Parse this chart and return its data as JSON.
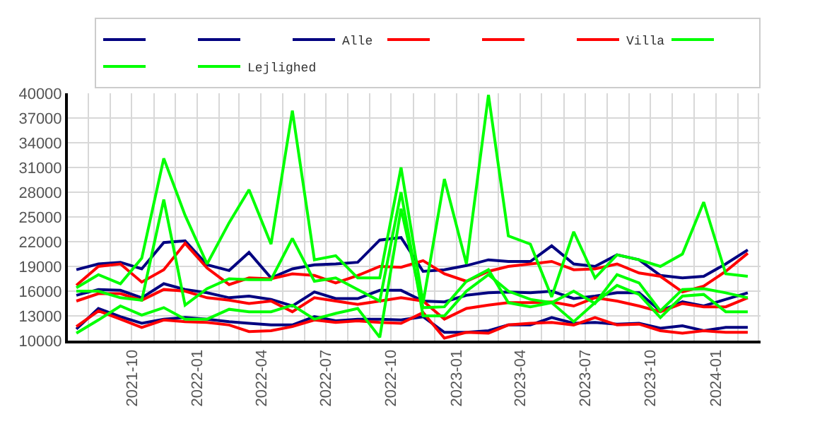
{
  "chart_data": {
    "type": "line",
    "x": [
      "2021-07-15",
      "2021-08-15",
      "2021-09-15",
      "2021-10-15",
      "2021-11-15",
      "2021-12-15",
      "2022-01-15",
      "2022-02-15",
      "2022-03-15",
      "2022-04-15",
      "2022-05-15",
      "2022-06-15",
      "2022-07-15",
      "2022-08-15",
      "2022-09-15",
      "2022-10-15",
      "2022-11-15",
      "2022-12-15",
      "2023-01-15",
      "2023-02-15",
      "2023-03-15",
      "2023-04-15",
      "2023-05-15",
      "2023-06-15",
      "2023-07-15",
      "2023-08-15",
      "2023-09-15",
      "2023-10-15",
      "2023-11-15",
      "2023-12-15",
      "2024-01-15",
      "2024-02-15"
    ],
    "series": [
      {
        "color": "#000080",
        "values": [
          18600,
          19300,
          19500,
          18700,
          21900,
          22100,
          19200,
          18500,
          20700,
          17600,
          18700,
          19200,
          19300,
          19500,
          22200,
          22500,
          18400,
          18600,
          19100,
          19800,
          19600,
          19600,
          21500,
          19300,
          19000,
          20400,
          19800,
          17900,
          17600,
          17800,
          19300,
          21000
        ]
      },
      {
        "color": "#000080",
        "values": [
          15500,
          16200,
          16100,
          15200,
          16900,
          16200,
          15800,
          15200,
          15400,
          15000,
          14200,
          15900,
          15100,
          15100,
          16100,
          16100,
          14800,
          14700,
          15500,
          15800,
          15900,
          15800,
          16000,
          15100,
          15400,
          15800,
          15800,
          13600,
          14700,
          14200,
          15000,
          15800
        ]
      },
      {
        "name": "Alle",
        "color": "#000080",
        "values": [
          11400,
          13900,
          12900,
          12100,
          12600,
          12800,
          12600,
          12300,
          12100,
          11900,
          11900,
          12900,
          12400,
          12600,
          12600,
          12500,
          12900,
          11000,
          11000,
          11200,
          11900,
          11900,
          12800,
          12100,
          12200,
          12000,
          12100,
          11500,
          11800,
          11200,
          11600,
          11600
        ]
      },
      {
        "color": "#ff0000",
        "values": [
          16700,
          19000,
          19300,
          17100,
          18600,
          21800,
          18800,
          16800,
          17600,
          17500,
          18100,
          17900,
          17000,
          17900,
          19000,
          18900,
          19700,
          18100,
          17200,
          18400,
          19000,
          19300,
          19600,
          18600,
          18700,
          19300,
          18200,
          17800,
          15900,
          16600,
          18400,
          20600
        ]
      },
      {
        "color": "#ff0000",
        "values": [
          14800,
          15700,
          15700,
          14900,
          16200,
          16000,
          15200,
          14900,
          14500,
          14800,
          13500,
          15200,
          14800,
          14400,
          14800,
          15200,
          14800,
          12600,
          13900,
          14300,
          14600,
          14600,
          14700,
          14200,
          15200,
          14800,
          14200,
          13500,
          14500,
          14100,
          14100,
          15200
        ]
      },
      {
        "name": "Villa",
        "color": "#ff0000",
        "values": [
          11700,
          13600,
          12600,
          11600,
          12500,
          12300,
          12200,
          11900,
          11100,
          11200,
          11700,
          12500,
          12200,
          12400,
          12200,
          12100,
          13400,
          10300,
          11000,
          10900,
          11900,
          12100,
          12200,
          11900,
          12800,
          11900,
          12000,
          11200,
          10900,
          11200,
          11000,
          11000
        ]
      },
      {
        "color": "#00ff00",
        "values": [
          16400,
          18000,
          16900,
          20000,
          32100,
          25200,
          19300,
          24300,
          28300,
          21700,
          37900,
          19800,
          20300,
          17600,
          17600,
          31000,
          14600,
          29600,
          19300,
          39800,
          22700,
          21700,
          15300,
          23200,
          17600,
          20400,
          19800,
          19000,
          20500,
          26800,
          18100,
          17800
        ]
      },
      {
        "color": "#00ff00",
        "values": [
          16000,
          16000,
          15200,
          14900,
          27100,
          14300,
          16300,
          17500,
          17400,
          17400,
          22400,
          17200,
          17600,
          16200,
          14800,
          28000,
          13000,
          13000,
          16000,
          18000,
          16000,
          15000,
          14600,
          16000,
          14500,
          18000,
          17000,
          13600,
          16200,
          16300,
          15800,
          15200
        ]
      },
      {
        "name": "Lejlighed",
        "color": "#00ff00",
        "values": [
          10900,
          12500,
          14200,
          13100,
          14000,
          12600,
          12600,
          13800,
          13500,
          13500,
          14300,
          12600,
          13300,
          13900,
          10400,
          26000,
          14000,
          14100,
          17200,
          18600,
          14600,
          14100,
          14600,
          12300,
          14600,
          16700,
          15600,
          12800,
          15400,
          15600,
          13500,
          13500
        ]
      }
    ],
    "xlim": [
      "2021-07-03",
      "2024-03-04"
    ],
    "xticks": [
      {
        "value": "2021-08-01",
        "label": null
      },
      {
        "value": "2021-09-01",
        "label": null
      },
      {
        "value": "2021-10-01",
        "label": "2021-10"
      },
      {
        "value": "2021-11-01",
        "label": null
      },
      {
        "value": "2021-12-01",
        "label": null
      },
      {
        "value": "2022-01-01",
        "label": "2022-01"
      },
      {
        "value": "2022-02-01",
        "label": null
      },
      {
        "value": "2022-03-01",
        "label": null
      },
      {
        "value": "2022-04-01",
        "label": "2022-04"
      },
      {
        "value": "2022-05-01",
        "label": null
      },
      {
        "value": "2022-06-01",
        "label": null
      },
      {
        "value": "2022-07-01",
        "label": "2022-07"
      },
      {
        "value": "2022-08-01",
        "label": null
      },
      {
        "value": "2022-09-01",
        "label": null
      },
      {
        "value": "2022-10-01",
        "label": "2022-10"
      },
      {
        "value": "2022-11-01",
        "label": null
      },
      {
        "value": "2022-12-01",
        "label": null
      },
      {
        "value": "2023-01-01",
        "label": "2023-01"
      },
      {
        "value": "2023-02-01",
        "label": null
      },
      {
        "value": "2023-03-01",
        "label": null
      },
      {
        "value": "2023-04-01",
        "label": "2023-04"
      },
      {
        "value": "2023-05-01",
        "label": null
      },
      {
        "value": "2023-06-01",
        "label": null
      },
      {
        "value": "2023-07-01",
        "label": "2023-07"
      },
      {
        "value": "2023-08-01",
        "label": null
      },
      {
        "value": "2023-09-01",
        "label": null
      },
      {
        "value": "2023-10-01",
        "label": "2023-10"
      },
      {
        "value": "2023-11-01",
        "label": null
      },
      {
        "value": "2023-12-01",
        "label": null
      },
      {
        "value": "2024-01-01",
        "label": "2024-01"
      },
      {
        "value": "2024-02-01",
        "label": null
      },
      {
        "value": "2024-03-01",
        "label": null
      }
    ],
    "ylim": [
      10000,
      40000
    ],
    "yticks": [
      10000,
      13000,
      16000,
      19000,
      22000,
      25000,
      28000,
      31000,
      34000,
      37000,
      40000
    ],
    "grid": true,
    "legend": "top right",
    "marker": "none",
    "line_style": "solid"
  }
}
